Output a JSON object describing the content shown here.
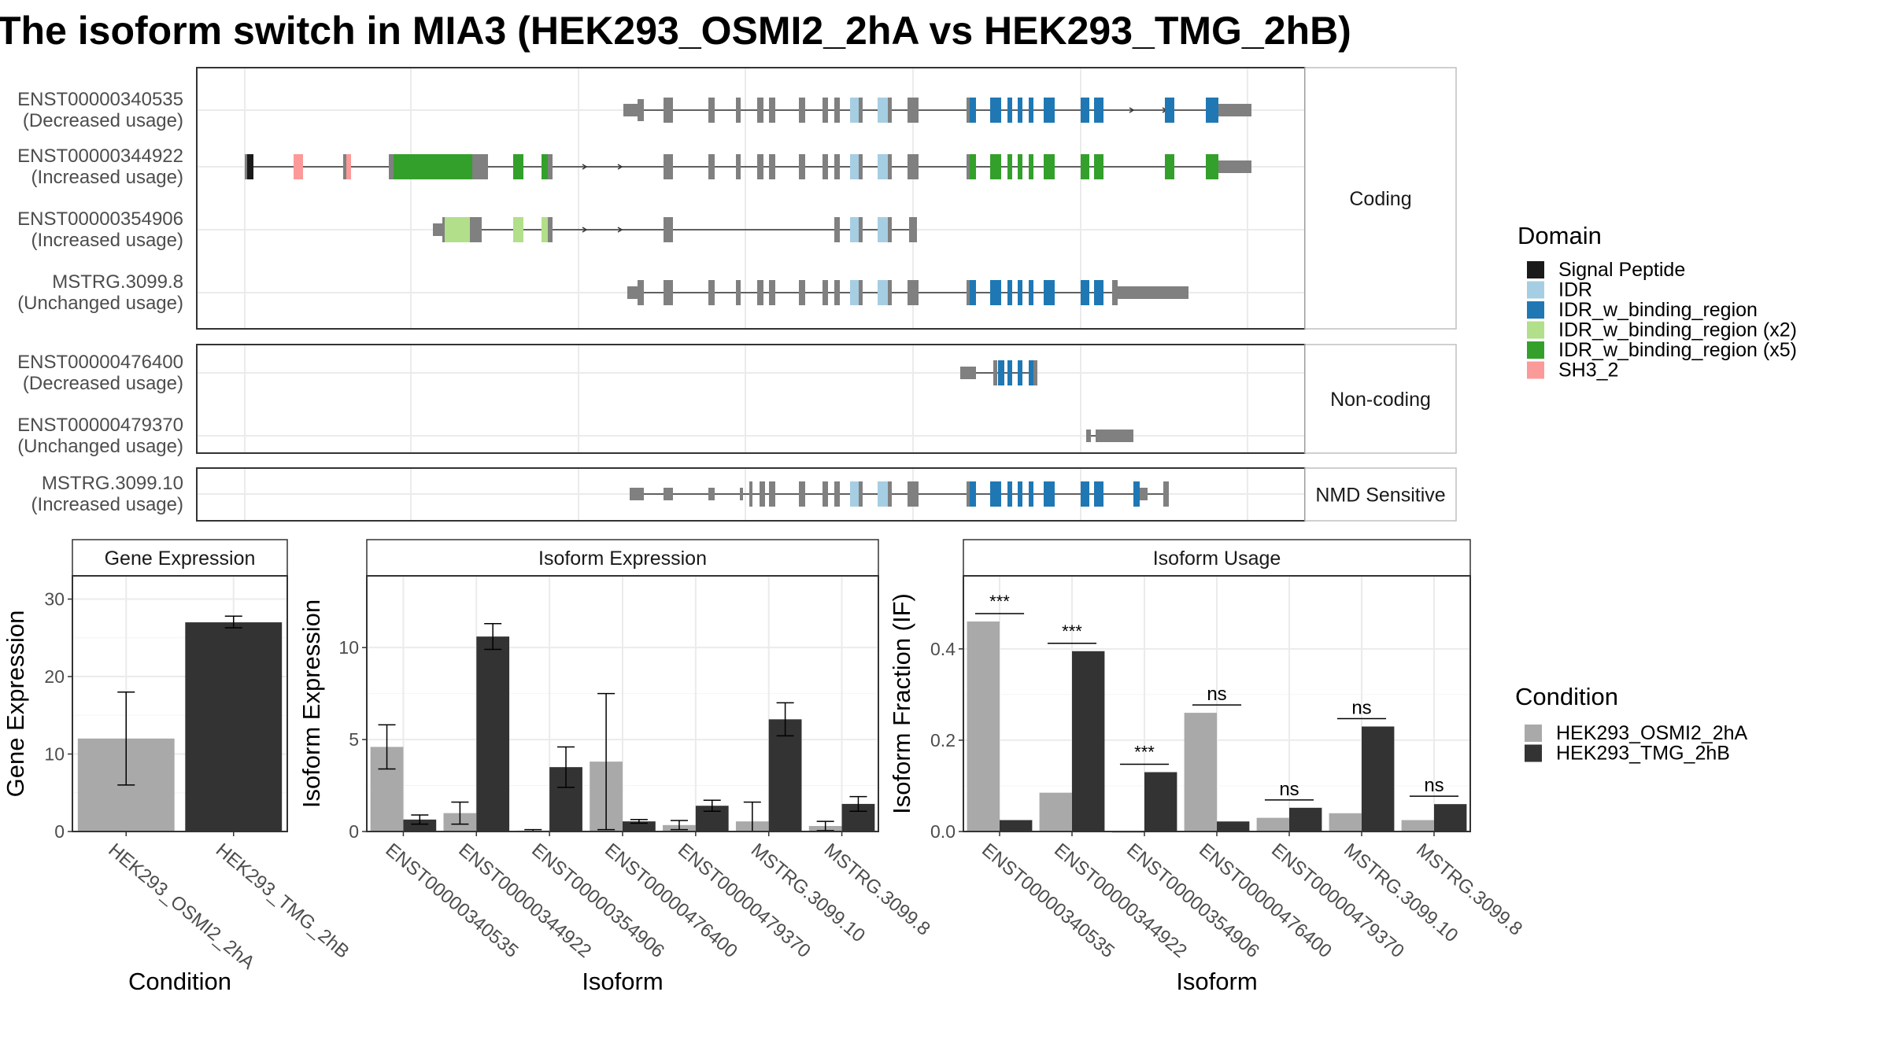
{
  "title": "The isoform switch in MIA3 (HEK293_OSMI2_2hA vs HEK293_TMG_2hB)",
  "colors": {
    "Signal Peptide": "#1a1a1a",
    "IDR": "#a6cee3",
    "IDR_w_binding_region": "#1f78b4",
    "IDR_w_binding_region (x2)": "#b2df8a",
    "IDR_w_binding_region (x5)": "#33a02c",
    "SH3_2": "#fb9a99",
    "exon": "#808080",
    "cond1": "#a9a9a9",
    "cond2": "#333333"
  },
  "legends": {
    "domain_title": "Domain",
    "domain_items": [
      "Signal Peptide",
      "IDR",
      "IDR_w_binding_region",
      "IDR_w_binding_region (x2)",
      "IDR_w_binding_region (x5)",
      "SH3_2"
    ],
    "condition_title": "Condition",
    "condition_items": [
      "HEK293_OSMI2_2hA",
      "HEK293_TMG_2hB"
    ]
  },
  "chart_data": [
    {
      "type": "table",
      "name": "transcript-structure",
      "facets": [
        {
          "label": "Coding",
          "transcripts": [
            {
              "id": "ENST00000340535",
              "usage": "(Decreased usage)"
            },
            {
              "id": "ENST00000344922",
              "usage": "(Increased usage)"
            },
            {
              "id": "ENST00000354906",
              "usage": "(Increased usage)"
            },
            {
              "id": "MSTRG.3099.8",
              "usage": "(Unchanged usage)"
            }
          ]
        },
        {
          "label": "Non-coding",
          "transcripts": [
            {
              "id": "ENST00000476400",
              "usage": "(Decreased usage)"
            },
            {
              "id": "ENST00000479370",
              "usage": "(Unchanged usage)"
            }
          ]
        },
        {
          "label": "NMD Sensitive",
          "transcripts": [
            {
              "id": "MSTRG.3099.10",
              "usage": "(Increased usage)"
            }
          ]
        }
      ]
    },
    {
      "type": "bar",
      "title": "Gene Expression",
      "xlabel": "Condition",
      "ylabel": "Gene Expression",
      "ylim": [
        0,
        33
      ],
      "yticks": [
        0,
        10,
        20,
        30
      ],
      "categories": [
        "HEK293_OSMI2_2hA",
        "HEK293_TMG_2hB"
      ],
      "values": [
        12,
        27
      ],
      "errors": [
        [
          6,
          18
        ],
        [
          26.3,
          27.8
        ]
      ]
    },
    {
      "type": "bar",
      "title": "Isoform Expression",
      "xlabel": "Isoform",
      "ylabel": "Isoform Expression",
      "ylim": [
        0,
        13.9
      ],
      "yticks": [
        0,
        5,
        10
      ],
      "categories": [
        "ENST00000340535",
        "ENST00000344922",
        "ENST00000354906",
        "ENST00000476400",
        "ENST00000479370",
        "MSTRG.3099.10",
        "MSTRG.3099.8"
      ],
      "series": [
        {
          "name": "HEK293_OSMI2_2hA",
          "values": [
            4.6,
            1.0,
            0.05,
            3.8,
            0.35,
            0.55,
            0.3
          ],
          "errors": [
            [
              3.4,
              5.8
            ],
            [
              0.4,
              1.6
            ],
            [
              0,
              0.1
            ],
            [
              0.1,
              7.5
            ],
            [
              0.1,
              0.6
            ],
            [
              0,
              1.6
            ],
            [
              0.05,
              0.55
            ]
          ]
        },
        {
          "name": "HEK293_TMG_2hB",
          "values": [
            0.65,
            10.6,
            3.5,
            0.55,
            1.4,
            6.1,
            1.5
          ],
          "errors": [
            [
              0.4,
              0.9
            ],
            [
              9.9,
              11.3
            ],
            [
              2.4,
              4.6
            ],
            [
              0.45,
              0.65
            ],
            [
              1.1,
              1.7
            ],
            [
              5.2,
              7.0
            ],
            [
              1.1,
              1.9
            ]
          ]
        }
      ]
    },
    {
      "type": "bar",
      "title": "Isoform Usage",
      "xlabel": "Isoform",
      "ylabel": "Isoform Fraction (IF)",
      "ylim": [
        0,
        0.56
      ],
      "yticks": [
        0.0,
        0.2,
        0.4
      ],
      "ytick_labels": [
        "0.0",
        "0.2",
        "0.4"
      ],
      "categories": [
        "ENST00000340535",
        "ENST00000344922",
        "ENST00000354906",
        "ENST00000476400",
        "ENST00000479370",
        "MSTRG.3099.10",
        "MSTRG.3099.8"
      ],
      "series": [
        {
          "name": "HEK293_OSMI2_2hA",
          "values": [
            0.46,
            0.085,
            0.0,
            0.26,
            0.03,
            0.04,
            0.025
          ]
        },
        {
          "name": "HEK293_TMG_2hB",
          "values": [
            0.025,
            0.395,
            0.13,
            0.022,
            0.052,
            0.23,
            0.06
          ]
        }
      ],
      "significance": [
        "***",
        "***",
        "***",
        "ns",
        "ns",
        "ns",
        "ns"
      ]
    }
  ]
}
